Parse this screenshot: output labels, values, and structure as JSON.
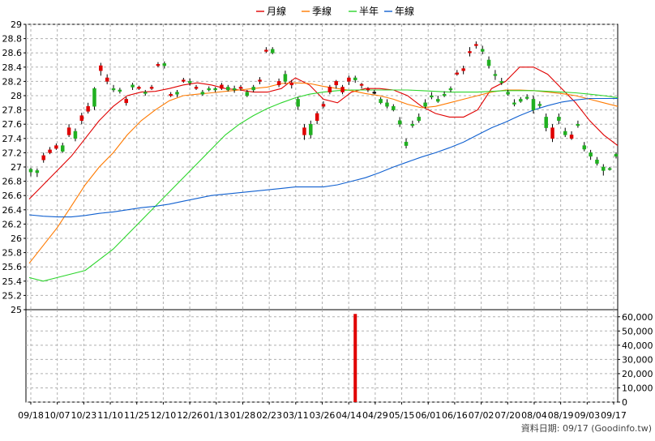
{
  "chart_data": [
    {
      "type": "line",
      "title": "",
      "legend": {
        "placement": "top-center",
        "items": [
          {
            "name": "月線",
            "color": "#e00000"
          },
          {
            "name": "季線",
            "color": "#ff7a00"
          },
          {
            "name": "半年",
            "color": "#2bd52b"
          },
          {
            "name": "年線",
            "color": "#1060d0"
          }
        ]
      },
      "ylim": [
        25,
        29
      ],
      "y_ticks": [
        "29",
        "28.8",
        "28.6",
        "28.4",
        "28.2",
        "28",
        "27.8",
        "27.6",
        "27.4",
        "27.2",
        "27",
        "26.8",
        "26.6",
        "26.4",
        "26.2",
        "26",
        "25.8",
        "25.6",
        "25.4",
        "25.2",
        "25"
      ],
      "x_ticks": [
        "09/18",
        "10/07",
        "10/23",
        "11/10",
        "11/25",
        "12/10",
        "12/26",
        "01/13",
        "01/28",
        "02/23",
        "03/11",
        "03/26",
        "04/14",
        "04/29",
        "05/15",
        "06/01",
        "06/16",
        "07/02",
        "07/20",
        "08/04",
        "08/19",
        "09/03",
        "09/17"
      ],
      "grid": true,
      "candle_colors": {
        "up": "#e00000",
        "down": "#20b020",
        "flat": "#000000"
      },
      "series": [
        {
          "name": "月線",
          "color": "#e00000",
          "values": [
            26.55,
            26.75,
            26.95,
            27.15,
            27.4,
            27.65,
            27.85,
            28.0,
            28.05,
            28.06,
            28.1,
            28.15,
            28.18,
            28.15,
            28.1,
            28.08,
            28.05,
            28.05,
            28.1,
            28.25,
            28.15,
            27.95,
            27.9,
            28.05,
            28.1,
            28.1,
            28.08,
            28.0,
            27.85,
            27.75,
            27.7,
            27.7,
            27.8,
            28.1,
            28.2,
            28.4,
            28.4,
            28.3,
            28.1,
            27.9,
            27.65,
            27.45,
            27.3
          ]
        },
        {
          "name": "季線",
          "color": "#ff7a00",
          "values": [
            25.65,
            25.9,
            26.15,
            26.45,
            26.75,
            27.0,
            27.2,
            27.45,
            27.65,
            27.8,
            27.93,
            28.0,
            28.02,
            28.04,
            28.06,
            28.08,
            28.1,
            28.12,
            28.17,
            28.18,
            28.17,
            28.13,
            28.1,
            28.07,
            28.03,
            28.0,
            27.95,
            27.88,
            27.83,
            27.85,
            27.9,
            27.95,
            28.0,
            28.05,
            28.08,
            28.08,
            28.07,
            28.05,
            28.03,
            28.0,
            27.95,
            27.9,
            27.85
          ]
        },
        {
          "name": "半年",
          "color": "#2bd52b",
          "values": [
            25.45,
            25.4,
            25.45,
            25.5,
            25.55,
            25.7,
            25.85,
            26.05,
            26.25,
            26.45,
            26.65,
            26.85,
            27.05,
            27.25,
            27.45,
            27.6,
            27.72,
            27.82,
            27.9,
            27.97,
            28.02,
            28.05,
            28.07,
            28.08,
            28.08,
            28.08,
            28.08,
            28.08,
            28.07,
            28.06,
            28.05,
            28.05,
            28.05,
            28.06,
            28.07,
            28.07,
            28.07,
            28.06,
            28.05,
            28.04,
            28.02,
            28.0,
            27.97
          ]
        },
        {
          "name": "年線",
          "color": "#1060d0",
          "values": [
            26.33,
            26.31,
            26.3,
            26.3,
            26.32,
            26.35,
            26.37,
            26.4,
            26.43,
            26.45,
            26.48,
            26.52,
            26.56,
            26.6,
            26.62,
            26.64,
            26.66,
            26.68,
            26.7,
            26.72,
            26.72,
            26.72,
            26.75,
            26.8,
            26.85,
            26.92,
            27.0,
            27.07,
            27.14,
            27.2,
            27.27,
            27.35,
            27.45,
            27.55,
            27.63,
            27.72,
            27.8,
            27.86,
            27.91,
            27.94,
            27.96,
            27.96,
            27.96
          ]
        }
      ],
      "candles": [
        [
          26.97,
          26.93,
          26.99,
          26.87
        ],
        [
          26.95,
          26.92,
          26.98,
          26.86
        ],
        [
          27.1,
          27.16,
          27.2,
          27.06
        ],
        [
          27.2,
          27.24,
          27.28,
          27.18
        ],
        [
          27.26,
          27.3,
          27.33,
          27.24
        ],
        [
          27.3,
          27.22,
          27.34,
          27.2
        ],
        [
          27.45,
          27.55,
          27.6,
          27.42
        ],
        [
          27.5,
          27.4,
          27.54,
          27.36
        ],
        [
          27.65,
          27.72,
          27.76,
          27.6
        ],
        [
          27.78,
          27.85,
          27.9,
          27.75
        ],
        [
          28.1,
          27.85,
          28.12,
          27.8
        ],
        [
          28.35,
          28.42,
          28.46,
          28.28
        ],
        [
          28.2,
          28.25,
          28.3,
          28.16
        ],
        [
          28.1,
          28.08,
          28.15,
          28.05
        ],
        [
          28.08,
          28.06,
          28.11,
          28.03
        ],
        [
          27.9,
          27.95,
          27.98,
          27.86
        ],
        [
          28.15,
          28.12,
          28.18,
          28.08
        ],
        [
          28.1,
          28.12,
          28.14,
          28.08
        ],
        [
          28.05,
          28.03,
          28.08,
          28.0
        ],
        [
          28.1,
          28.12,
          28.15,
          28.08
        ],
        [
          28.42,
          28.44,
          28.47,
          28.4
        ],
        [
          28.45,
          28.42,
          28.48,
          28.38
        ],
        [
          28.0,
          28.02,
          28.05,
          27.98
        ],
        [
          28.05,
          28.02,
          28.08,
          27.98
        ],
        [
          28.2,
          28.22,
          28.25,
          28.18
        ],
        [
          28.2,
          28.18,
          28.24,
          28.14
        ],
        [
          28.1,
          28.12,
          28.15,
          28.08
        ],
        [
          28.05,
          28.02,
          28.08,
          28.0
        ],
        [
          28.1,
          28.08,
          28.13,
          28.06
        ],
        [
          28.1,
          28.08,
          28.12,
          28.05
        ],
        [
          28.1,
          28.15,
          28.18,
          28.08
        ],
        [
          28.12,
          28.08,
          28.15,
          28.06
        ],
        [
          28.1,
          28.08,
          28.14,
          28.04
        ],
        [
          28.1,
          28.12,
          28.15,
          28.07
        ],
        [
          28.05,
          28.0,
          28.08,
          27.98
        ],
        [
          28.12,
          28.08,
          28.15,
          28.05
        ],
        [
          28.2,
          28.22,
          28.26,
          28.16
        ],
        [
          28.62,
          28.64,
          28.68,
          28.6
        ],
        [
          28.65,
          28.6,
          28.68,
          28.58
        ],
        [
          28.15,
          28.2,
          28.24,
          28.12
        ],
        [
          28.3,
          28.2,
          28.35,
          28.16
        ],
        [
          28.15,
          28.18,
          28.22,
          28.1
        ],
        [
          27.95,
          27.85,
          27.98,
          27.8
        ],
        [
          27.45,
          27.55,
          27.6,
          27.38
        ],
        [
          27.6,
          27.45,
          27.65,
          27.4
        ],
        [
          27.65,
          27.75,
          27.78,
          27.6
        ],
        [
          27.85,
          27.88,
          27.92,
          27.82
        ],
        [
          28.05,
          28.12,
          28.15,
          28.02
        ],
        [
          28.15,
          28.2,
          28.22,
          28.1
        ],
        [
          28.05,
          28.12,
          28.15,
          28.02
        ],
        [
          28.2,
          28.25,
          28.28,
          28.15
        ],
        [
          28.25,
          28.22,
          28.28,
          28.18
        ],
        [
          28.15,
          28.16,
          28.18,
          28.1
        ],
        [
          28.08,
          28.1,
          28.12,
          28.05
        ],
        [
          28.05,
          28.05,
          28.08,
          28.02
        ],
        [
          27.95,
          27.9,
          27.98,
          27.88
        ],
        [
          27.9,
          27.85,
          27.95,
          27.82
        ],
        [
          27.85,
          27.8,
          27.88,
          27.78
        ],
        [
          27.65,
          27.6,
          27.7,
          27.56
        ],
        [
          27.35,
          27.3,
          27.4,
          27.26
        ],
        [
          27.6,
          27.58,
          27.65,
          27.55
        ],
        [
          27.7,
          27.65,
          27.75,
          27.62
        ],
        [
          27.9,
          27.85,
          27.95,
          27.82
        ],
        [
          28.0,
          27.98,
          28.05,
          27.95
        ],
        [
          27.95,
          27.92,
          28.0,
          27.9
        ],
        [
          28.02,
          28.0,
          28.06,
          27.98
        ],
        [
          28.1,
          28.08,
          28.13,
          28.05
        ],
        [
          28.3,
          28.32,
          28.36,
          28.28
        ],
        [
          28.35,
          28.38,
          28.42,
          28.3
        ],
        [
          28.6,
          28.62,
          28.68,
          28.55
        ],
        [
          28.7,
          28.72,
          28.76,
          28.66
        ],
        [
          28.65,
          28.62,
          28.7,
          28.58
        ],
        [
          28.5,
          28.42,
          28.55,
          28.38
        ],
        [
          28.3,
          28.28,
          28.36,
          28.22
        ],
        [
          28.2,
          28.18,
          28.25,
          28.15
        ],
        [
          28.05,
          28.02,
          28.08,
          28.0
        ],
        [
          27.9,
          27.88,
          27.95,
          27.85
        ],
        [
          27.95,
          27.92,
          27.98,
          27.9
        ],
        [
          27.98,
          27.96,
          28.02,
          27.94
        ],
        [
          27.95,
          27.8,
          28.0,
          27.75
        ],
        [
          27.88,
          27.86,
          27.92,
          27.83
        ],
        [
          27.7,
          27.55,
          27.75,
          27.5
        ],
        [
          27.4,
          27.55,
          27.6,
          27.35
        ],
        [
          27.7,
          27.65,
          27.75,
          27.6
        ],
        [
          27.5,
          27.45,
          27.55,
          27.42
        ],
        [
          27.4,
          27.45,
          27.5,
          27.38
        ],
        [
          27.6,
          27.58,
          27.65,
          27.55
        ],
        [
          27.3,
          27.25,
          27.35,
          27.22
        ],
        [
          27.2,
          27.15,
          27.24,
          27.1
        ],
        [
          27.1,
          27.05,
          27.14,
          27.02
        ],
        [
          27.0,
          26.95,
          27.04,
          26.88
        ],
        [
          26.98,
          26.97,
          27.0,
          26.95
        ],
        [
          27.18,
          27.15,
          27.2,
          27.12
        ]
      ]
    },
    {
      "type": "bar",
      "title": "",
      "ylim": [
        0,
        65000
      ],
      "y_ticks": [
        "60,000",
        "50,000",
        "40,000",
        "30,000",
        "20,000",
        "10,000",
        "0"
      ],
      "bar_index": 51,
      "bar_value": 62000,
      "bar_color": "#e00000"
    }
  ],
  "footer": {
    "text": "資料日期: 09/17  (Goodinfo.tw)"
  }
}
